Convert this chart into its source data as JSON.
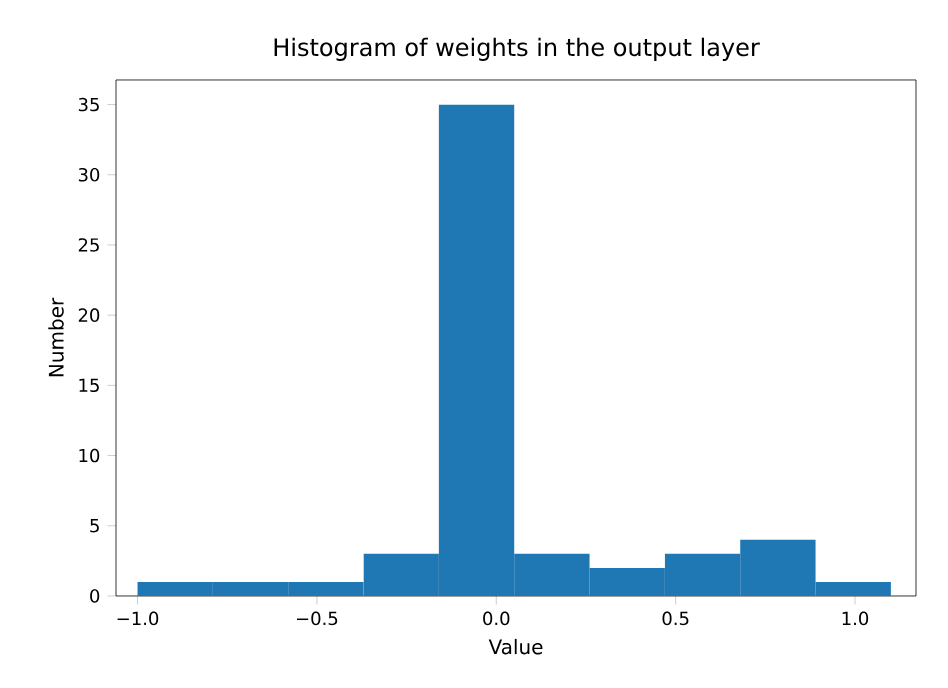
{
  "chart_data": {
    "type": "histogram",
    "title": "Histogram of weights in the output layer",
    "xlabel": "Value",
    "ylabel": "Number",
    "bins": [
      -1.0,
      -0.79,
      -0.58,
      -0.37,
      -0.16,
      0.05,
      0.26,
      0.47,
      0.68,
      0.89,
      1.1
    ],
    "values": [
      1,
      1,
      1,
      3,
      35,
      3,
      2,
      3,
      4,
      1
    ],
    "color": "#1f77b4",
    "xlim": [
      -1.06,
      1.17
    ],
    "ylim": [
      0,
      36.75
    ],
    "xticks": [
      {
        "value": -1.0,
        "label": "−1.0"
      },
      {
        "value": -0.5,
        "label": "−0.5"
      },
      {
        "value": 0.0,
        "label": "0.0"
      },
      {
        "value": 0.5,
        "label": "0.5"
      },
      {
        "value": 1.0,
        "label": "1.0"
      }
    ],
    "yticks": [
      0,
      5,
      10,
      15,
      20,
      25,
      30,
      35
    ]
  }
}
